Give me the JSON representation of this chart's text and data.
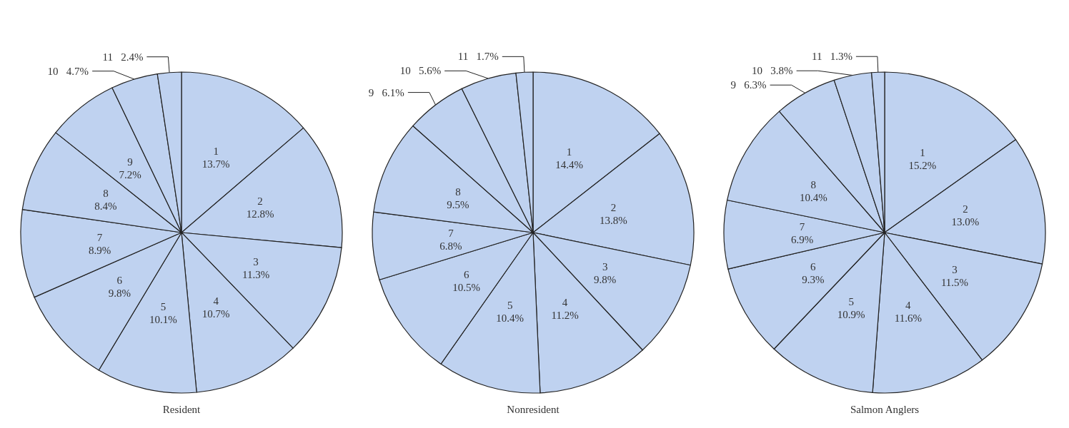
{
  "chart_data": [
    {
      "type": "pie",
      "title": "Resident",
      "categories": [
        "1",
        "2",
        "3",
        "4",
        "5",
        "6",
        "7",
        "8",
        "9",
        "10",
        "11"
      ],
      "values": [
        13.7,
        12.8,
        11.3,
        10.7,
        10.1,
        9.8,
        8.9,
        8.4,
        7.2,
        4.7,
        2.4
      ],
      "value_labels": [
        "13.7%",
        "12.8%",
        "11.3%",
        "10.7%",
        "10.1%",
        "9.8%",
        "8.9%",
        "8.4%",
        "7.2%",
        "4.7%",
        "2.4%"
      ],
      "colors": [
        "#bfd2f0",
        "#bfd2f0",
        "#bfd2f0",
        "#bfd2f0",
        "#bfd2f0",
        "#bfd2f0",
        "#bfd2f0",
        "#bfd2f0",
        "#bfd2f0",
        "#bfd2f0",
        "#bfd2f0"
      ]
    },
    {
      "type": "pie",
      "title": "Nonresident",
      "categories": [
        "1",
        "2",
        "3",
        "4",
        "5",
        "6",
        "7",
        "8",
        "9",
        "10",
        "11"
      ],
      "values": [
        14.4,
        13.8,
        9.8,
        11.2,
        10.4,
        10.5,
        6.8,
        9.5,
        6.1,
        5.6,
        1.7
      ],
      "value_labels": [
        "14.4%",
        "13.8%",
        "9.8%",
        "11.2%",
        "10.4%",
        "10.5%",
        "6.8%",
        "9.5%",
        "6.1%",
        "5.6%",
        "1.7%"
      ],
      "colors": [
        "#bfd2f0",
        "#bfd2f0",
        "#bfd2f0",
        "#bfd2f0",
        "#bfd2f0",
        "#bfd2f0",
        "#bfd2f0",
        "#bfd2f0",
        "#bfd2f0",
        "#bfd2f0",
        "#bfd2f0"
      ]
    },
    {
      "type": "pie",
      "title": "Salmon Anglers",
      "categories": [
        "1",
        "2",
        "3",
        "4",
        "5",
        "6",
        "7",
        "8",
        "9",
        "10",
        "11"
      ],
      "values": [
        15.2,
        13.0,
        11.5,
        11.6,
        10.9,
        9.3,
        6.9,
        10.4,
        6.3,
        3.8,
        1.3
      ],
      "value_labels": [
        "15.2%",
        "13.0%",
        "11.5%",
        "11.6%",
        "10.9%",
        "9.3%",
        "6.9%",
        "10.4%",
        "6.3%",
        "3.8%",
        "1.3%"
      ],
      "colors": [
        "#bfd2f0",
        "#bfd2f0",
        "#bfd2f0",
        "#bfd2f0",
        "#bfd2f0",
        "#bfd2f0",
        "#bfd2f0",
        "#bfd2f0",
        "#bfd2f0",
        "#bfd2f0",
        "#bfd2f0"
      ]
    }
  ]
}
